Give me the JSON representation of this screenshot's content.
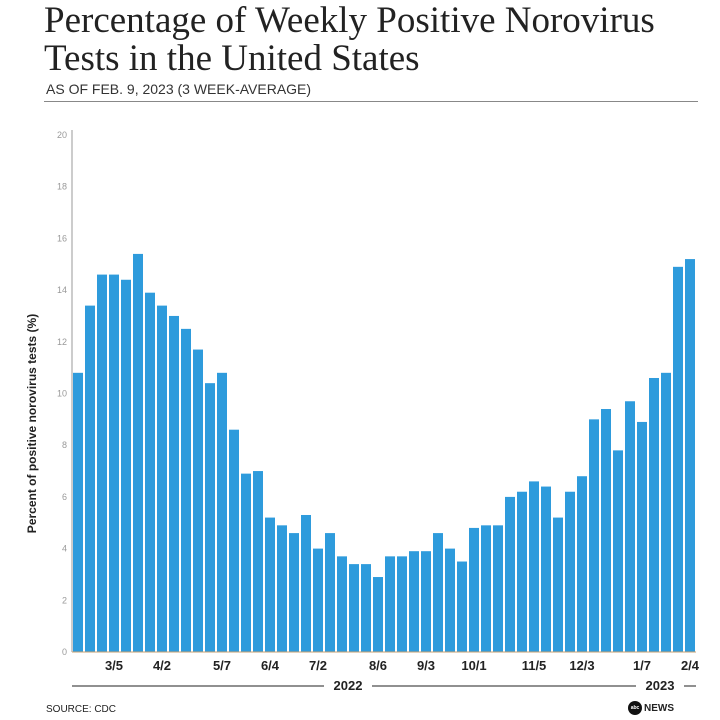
{
  "title": "Percentage of Weekly Positive Norovirus Tests in the United States",
  "subtitle": "AS OF FEB. 9, 2023 (3 WEEK-AVERAGE)",
  "source": "SOURCE: CDC",
  "logo": "abc NEWS",
  "colors": {
    "bar": "#2e9bdc",
    "axis": "#999999"
  },
  "chart_data": {
    "type": "bar",
    "title": "Percentage of Weekly Positive Norovirus Tests in the United States",
    "xlabel": "",
    "ylabel": "Percent of positive norovirus tests (%)",
    "ylim": [
      0,
      20
    ],
    "yticks": [
      0,
      2,
      4,
      6,
      8,
      10,
      12,
      14,
      16,
      18,
      20
    ],
    "grid": false,
    "values": [
      10.8,
      13.4,
      14.6,
      14.6,
      14.4,
      15.4,
      13.9,
      13.4,
      13.0,
      12.5,
      11.7,
      10.4,
      10.8,
      8.6,
      6.9,
      7.0,
      5.2,
      4.9,
      4.6,
      5.3,
      4.0,
      4.6,
      3.7,
      3.4,
      3.4,
      2.9,
      3.7,
      3.7,
      3.9,
      3.9,
      4.6,
      4.0,
      3.5,
      4.8,
      4.9,
      4.9,
      6.0,
      6.2,
      6.6,
      6.4,
      5.2,
      6.2,
      6.8,
      9.0,
      9.4,
      7.8,
      9.7,
      8.9,
      10.6,
      10.8,
      14.9,
      15.2
    ],
    "xticks": [
      {
        "bar": 4,
        "label": "3/5"
      },
      {
        "bar": 8,
        "label": "4/2"
      },
      {
        "bar": 13,
        "label": "5/7"
      },
      {
        "bar": 17,
        "label": "6/4"
      },
      {
        "bar": 21,
        "label": "7/2"
      },
      {
        "bar": 26,
        "label": "8/6"
      },
      {
        "bar": 30,
        "label": "9/3"
      },
      {
        "bar": 34,
        "label": "10/1"
      },
      {
        "bar": 39,
        "label": "11/5"
      },
      {
        "bar": 43,
        "label": "12/3"
      },
      {
        "bar": 48,
        "label": "1/7"
      },
      {
        "bar": 52,
        "label": "2/4"
      }
    ],
    "year_groups": [
      {
        "label": "2022",
        "from_bar": 1,
        "to_bar": 46
      },
      {
        "label": "2023",
        "from_bar": 47,
        "to_bar": 52
      }
    ]
  }
}
